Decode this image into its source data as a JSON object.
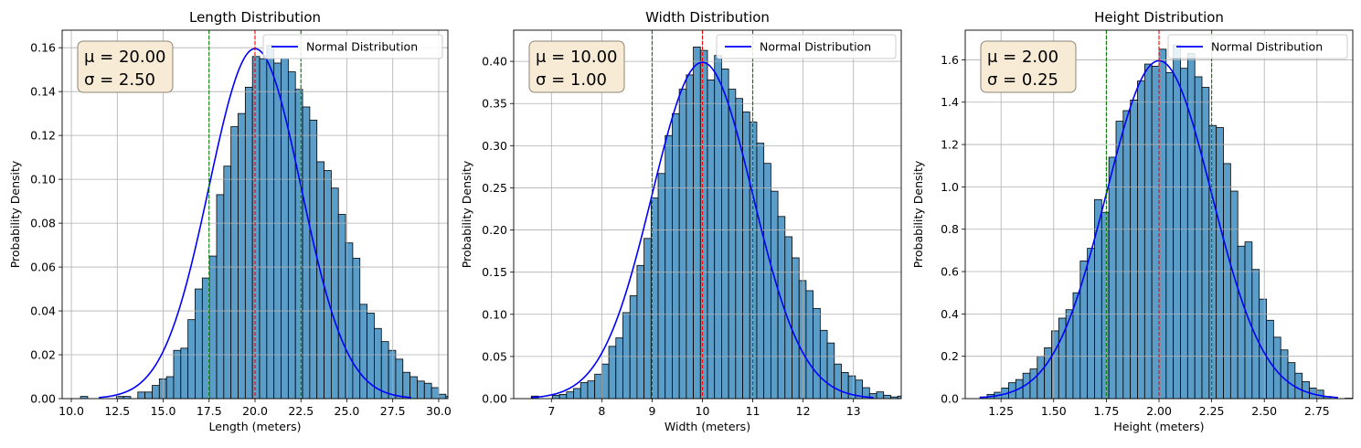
{
  "colors": {
    "bar_fill": "#5b9dc9",
    "bar_edge": "#000000",
    "normal_curve": "#0000ff",
    "mean_line": "#ff0000",
    "sigma_line": "#008000",
    "grid": "#b0b0b0",
    "stats_box_fill": "#f8ebd5",
    "stats_box_edge": "#8c8577"
  },
  "chart_data": [
    {
      "type": "bar",
      "title": "Length Distribution",
      "xlabel": "Length (meters)",
      "ylabel": "Probability Density",
      "mu": 20.0,
      "sigma": 2.5,
      "stats_text": {
        "mu": "μ = 20.00",
        "sigma": "σ = 2.50"
      },
      "xlim": [
        9.5,
        30.5
      ],
      "ylim": [
        0,
        0.168
      ],
      "xticks": [
        10.0,
        12.5,
        15.0,
        17.5,
        20.0,
        22.5,
        25.0,
        27.5,
        30.0
      ],
      "xtick_labels": [
        "10.0",
        "12.5",
        "15.0",
        "17.5",
        "20.0",
        "22.5",
        "25.0",
        "27.5",
        "30.0"
      ],
      "yticks": [
        0,
        0.02,
        0.04,
        0.06,
        0.08,
        0.1,
        0.12,
        0.14,
        0.16
      ],
      "ytick_labels": [
        "0.00",
        "0.02",
        "0.04",
        "0.06",
        "0.08",
        "0.10",
        "0.12",
        "0.14",
        "0.16"
      ],
      "grid": true,
      "legend": {
        "label": "Normal Distribution",
        "placement": "top-right"
      },
      "bins": {
        "start": 10.5,
        "width": 0.39,
        "density": [
          0.001,
          0.0,
          0.0,
          0.0,
          0.0,
          0.001,
          0.001,
          0.0,
          0.003,
          0.003,
          0.006,
          0.009,
          0.01,
          0.022,
          0.023,
          0.036,
          0.05,
          0.055,
          0.065,
          0.093,
          0.106,
          0.124,
          0.13,
          0.142,
          0.156,
          0.155,
          0.161,
          0.153,
          0.155,
          0.149,
          0.141,
          0.133,
          0.127,
          0.108,
          0.104,
          0.096,
          0.084,
          0.071,
          0.064,
          0.043,
          0.039,
          0.032,
          0.026,
          0.022,
          0.018,
          0.012,
          0.01,
          0.008,
          0.007,
          0.005,
          0.002,
          0.001,
          0.0,
          0.001
        ]
      }
    },
    {
      "type": "bar",
      "title": "Width Distribution",
      "xlabel": "Width (meters)",
      "ylabel": "Probability Density",
      "mu": 10.0,
      "sigma": 1.0,
      "stats_text": {
        "mu": "μ = 10.00",
        "sigma": "σ = 1.00"
      },
      "xlim": [
        6.25,
        13.95
      ],
      "ylim": [
        0,
        0.437
      ],
      "xticks": [
        7,
        8,
        9,
        10,
        11,
        12,
        13
      ],
      "xtick_labels": [
        "7",
        "8",
        "9",
        "10",
        "11",
        "12",
        "13"
      ],
      "yticks": [
        0,
        0.05,
        0.1,
        0.15,
        0.2,
        0.25,
        0.3,
        0.35,
        0.4
      ],
      "ytick_labels": [
        "0.00",
        "0.05",
        "0.10",
        "0.15",
        "0.20",
        "0.25",
        "0.30",
        "0.35",
        "0.40"
      ],
      "grid": true,
      "legend": {
        "label": "Normal Distribution",
        "placement": "top-right"
      },
      "bins": {
        "start": 6.6,
        "width": 0.14,
        "density": [
          0.003,
          0.0,
          0.0,
          0.004,
          0.005,
          0.008,
          0.012,
          0.019,
          0.021,
          0.029,
          0.041,
          0.062,
          0.072,
          0.102,
          0.122,
          0.158,
          0.19,
          0.238,
          0.267,
          0.312,
          0.338,
          0.367,
          0.384,
          0.417,
          0.413,
          0.378,
          0.407,
          0.391,
          0.367,
          0.356,
          0.34,
          0.328,
          0.303,
          0.279,
          0.246,
          0.216,
          0.192,
          0.167,
          0.14,
          0.128,
          0.107,
          0.081,
          0.066,
          0.041,
          0.031,
          0.027,
          0.022,
          0.013,
          0.006,
          0.008,
          0.004,
          0.002,
          0.003
        ]
      }
    },
    {
      "type": "bar",
      "title": "Height Distribution",
      "xlabel": "Height (meters)",
      "ylabel": "Probability Density",
      "mu": 2.0,
      "sigma": 0.25,
      "stats_text": {
        "mu": "μ = 2.00",
        "sigma": "σ = 0.25"
      },
      "xlim": [
        1.08,
        2.92
      ],
      "ylim": [
        0,
        1.74
      ],
      "xticks": [
        1.25,
        1.5,
        1.75,
        2.0,
        2.25,
        2.5,
        2.75
      ],
      "xtick_labels": [
        "1.25",
        "1.50",
        "1.75",
        "2.00",
        "2.25",
        "2.50",
        "2.75"
      ],
      "yticks": [
        0,
        0.2,
        0.4,
        0.6,
        0.8,
        1.0,
        1.2,
        1.4,
        1.6
      ],
      "ytick_labels": [
        "0.0",
        "0.2",
        "0.4",
        "0.6",
        "0.8",
        "1.0",
        "1.2",
        "1.4",
        "1.6"
      ],
      "grid": true,
      "legend": {
        "label": "Normal Distribution",
        "placement": "top-right"
      },
      "bins": {
        "start": 1.15,
        "width": 0.034,
        "density": [
          0.008,
          0.02,
          0.03,
          0.05,
          0.075,
          0.09,
          0.12,
          0.14,
          0.2,
          0.24,
          0.32,
          0.38,
          0.42,
          0.5,
          0.65,
          0.71,
          0.94,
          0.88,
          1.14,
          1.31,
          1.36,
          1.41,
          1.5,
          1.58,
          1.57,
          1.65,
          1.54,
          1.67,
          1.56,
          1.63,
          1.52,
          1.47,
          1.29,
          1.28,
          1.11,
          0.98,
          0.72,
          0.74,
          0.61,
          0.47,
          0.37,
          0.29,
          0.23,
          0.17,
          0.12,
          0.08,
          0.05,
          0.04,
          0.01,
          0.0,
          0.0,
          0.002
        ]
      }
    }
  ]
}
